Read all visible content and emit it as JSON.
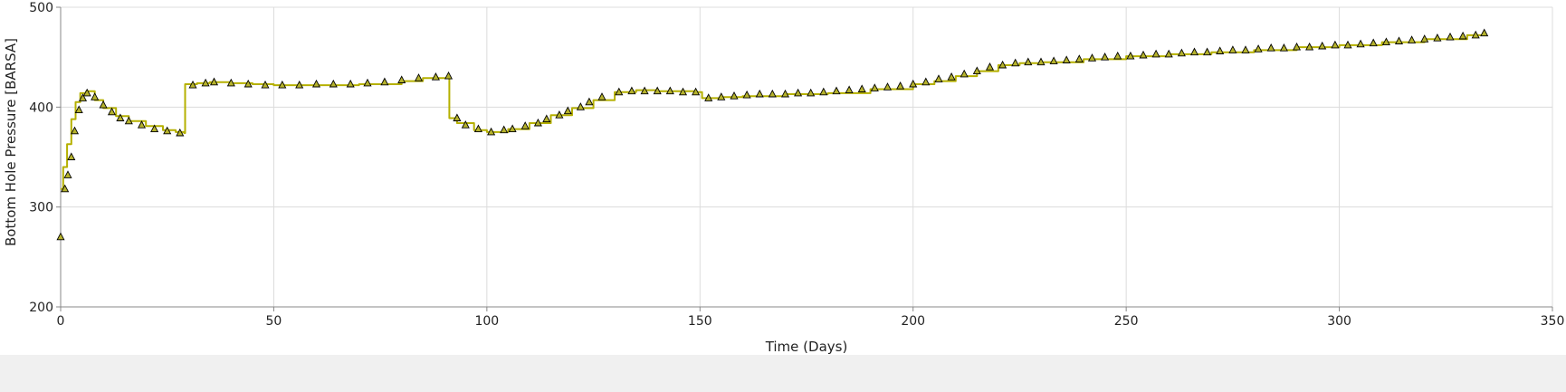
{
  "chart_data": {
    "type": "line",
    "title": "",
    "xlabel": "Time (Days)",
    "ylabel": "Bottom Hole Pressure [BARSA]",
    "xlim": [
      0,
      350
    ],
    "ylim": [
      200,
      500
    ],
    "xticks": [
      0,
      50,
      100,
      150,
      200,
      250,
      300,
      350
    ],
    "yticks": [
      200,
      300,
      400,
      500
    ],
    "grid": true,
    "legend": "none",
    "series": [
      {
        "kind": "step-line",
        "color": "#b5b000",
        "points": [
          [
            0,
            318
          ],
          [
            0.6,
            340
          ],
          [
            1.5,
            363
          ],
          [
            2.5,
            388
          ],
          [
            3.5,
            405
          ],
          [
            4.6,
            414
          ],
          [
            6,
            416
          ],
          [
            8,
            407
          ],
          [
            10,
            399
          ],
          [
            13,
            391
          ],
          [
            16,
            386
          ],
          [
            20,
            381
          ],
          [
            24,
            377
          ],
          [
            27,
            375
          ],
          [
            29,
            374
          ],
          [
            29.2,
            423
          ],
          [
            32,
            424
          ],
          [
            35,
            425
          ],
          [
            40,
            424
          ],
          [
            45,
            423
          ],
          [
            50,
            422
          ],
          [
            60,
            422
          ],
          [
            70,
            423
          ],
          [
            80,
            426
          ],
          [
            85,
            429
          ],
          [
            91,
            431
          ],
          [
            91.2,
            389
          ],
          [
            93,
            384
          ],
          [
            97,
            377
          ],
          [
            100,
            375
          ],
          [
            105,
            378
          ],
          [
            110,
            384
          ],
          [
            115,
            392
          ],
          [
            120,
            399
          ],
          [
            125,
            407
          ],
          [
            130,
            415
          ],
          [
            135,
            417
          ],
          [
            140,
            416
          ],
          [
            145,
            416
          ],
          [
            149,
            415
          ],
          [
            150.5,
            409
          ],
          [
            155,
            410
          ],
          [
            160,
            411
          ],
          [
            170,
            413
          ],
          [
            180,
            414
          ],
          [
            190,
            418
          ],
          [
            200,
            423
          ],
          [
            205,
            426
          ],
          [
            210,
            431
          ],
          [
            215,
            436
          ],
          [
            220,
            442
          ],
          [
            225,
            444
          ],
          [
            230,
            445
          ],
          [
            240,
            448
          ],
          [
            250,
            451
          ],
          [
            260,
            453
          ],
          [
            270,
            455
          ],
          [
            280,
            457
          ],
          [
            290,
            460
          ],
          [
            300,
            462
          ],
          [
            310,
            465
          ],
          [
            320,
            468
          ],
          [
            330,
            472
          ],
          [
            334,
            473
          ]
        ]
      },
      {
        "kind": "markers",
        "marker": "triangle",
        "fill": "#b5b22c",
        "stroke": "#000000",
        "points": [
          [
            0,
            270
          ],
          [
            1,
            318
          ],
          [
            1.7,
            332
          ],
          [
            2.5,
            350
          ],
          [
            3.3,
            376
          ],
          [
            4.3,
            397
          ],
          [
            5.2,
            409
          ],
          [
            6.2,
            414
          ],
          [
            8,
            410
          ],
          [
            10,
            402
          ],
          [
            12,
            395
          ],
          [
            14,
            389
          ],
          [
            16,
            386
          ],
          [
            19,
            382
          ],
          [
            22,
            378
          ],
          [
            25,
            376
          ],
          [
            28,
            374
          ],
          [
            31,
            422
          ],
          [
            34,
            424
          ],
          [
            36,
            425
          ],
          [
            40,
            424
          ],
          [
            44,
            423
          ],
          [
            48,
            422
          ],
          [
            52,
            422
          ],
          [
            56,
            422
          ],
          [
            60,
            423
          ],
          [
            64,
            423
          ],
          [
            68,
            423
          ],
          [
            72,
            424
          ],
          [
            76,
            425
          ],
          [
            80,
            427
          ],
          [
            84,
            429
          ],
          [
            88,
            430
          ],
          [
            91,
            431
          ],
          [
            93,
            389
          ],
          [
            95,
            382
          ],
          [
            98,
            378
          ],
          [
            101,
            375
          ],
          [
            104,
            377
          ],
          [
            106,
            378
          ],
          [
            109,
            381
          ],
          [
            112,
            384
          ],
          [
            114,
            388
          ],
          [
            117,
            392
          ],
          [
            119,
            396
          ],
          [
            122,
            400
          ],
          [
            124,
            405
          ],
          [
            127,
            410
          ],
          [
            131,
            415
          ],
          [
            134,
            416
          ],
          [
            137,
            416
          ],
          [
            140,
            416
          ],
          [
            143,
            416
          ],
          [
            146,
            415
          ],
          [
            149,
            415
          ],
          [
            152,
            409
          ],
          [
            155,
            410
          ],
          [
            158,
            411
          ],
          [
            161,
            412
          ],
          [
            164,
            413
          ],
          [
            167,
            413
          ],
          [
            170,
            413
          ],
          [
            173,
            414
          ],
          [
            176,
            414
          ],
          [
            179,
            415
          ],
          [
            182,
            416
          ],
          [
            185,
            417
          ],
          [
            188,
            418
          ],
          [
            191,
            419
          ],
          [
            194,
            420
          ],
          [
            197,
            421
          ],
          [
            200,
            423
          ],
          [
            203,
            425
          ],
          [
            206,
            428
          ],
          [
            209,
            430
          ],
          [
            212,
            433
          ],
          [
            215,
            436
          ],
          [
            218,
            440
          ],
          [
            221,
            442
          ],
          [
            224,
            444
          ],
          [
            227,
            445
          ],
          [
            230,
            445
          ],
          [
            233,
            446
          ],
          [
            236,
            447
          ],
          [
            239,
            448
          ],
          [
            242,
            449
          ],
          [
            245,
            450
          ],
          [
            248,
            451
          ],
          [
            251,
            451
          ],
          [
            254,
            452
          ],
          [
            257,
            453
          ],
          [
            260,
            453
          ],
          [
            263,
            454
          ],
          [
            266,
            455
          ],
          [
            269,
            455
          ],
          [
            272,
            456
          ],
          [
            275,
            457
          ],
          [
            278,
            457
          ],
          [
            281,
            458
          ],
          [
            284,
            459
          ],
          [
            287,
            459
          ],
          [
            290,
            460
          ],
          [
            293,
            460
          ],
          [
            296,
            461
          ],
          [
            299,
            462
          ],
          [
            302,
            462
          ],
          [
            305,
            463
          ],
          [
            308,
            464
          ],
          [
            311,
            465
          ],
          [
            314,
            466
          ],
          [
            317,
            467
          ],
          [
            320,
            468
          ],
          [
            323,
            469
          ],
          [
            326,
            470
          ],
          [
            329,
            471
          ],
          [
            332,
            472
          ],
          [
            334,
            474
          ]
        ]
      }
    ]
  }
}
